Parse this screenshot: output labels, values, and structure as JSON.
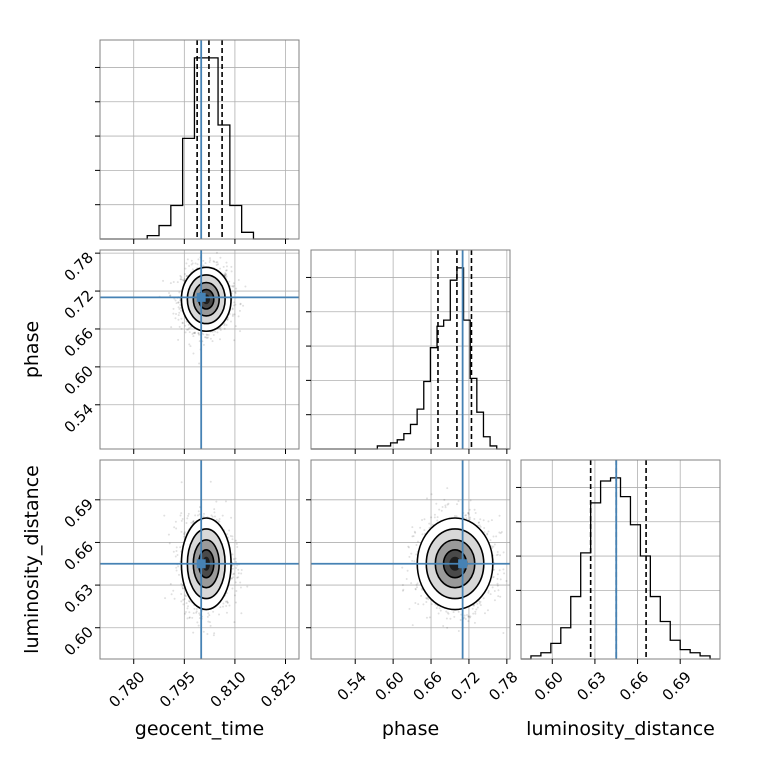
{
  "colors": {
    "truth": "#4682b4",
    "hist": "#000000",
    "grid": "#b0b0b0",
    "scatter": "#000000"
  },
  "chart_data": {
    "type": "corner",
    "parameters": [
      "geocent_time",
      "phase",
      "luminosity_distance"
    ],
    "axes_labels": {
      "x": [
        "geocent_time",
        "phase",
        "luminosity_distance"
      ],
      "y": [
        "phase",
        "luminosity_distance"
      ]
    },
    "truths": {
      "geocent_time": 0.8,
      "phase": 0.71,
      "luminosity_distance": 0.645
    },
    "ranges": {
      "geocent_time": [
        0.77,
        0.829
      ],
      "phase": [
        0.47,
        0.785
      ],
      "luminosity_distance": [
        0.578,
        0.718
      ]
    },
    "ticks": {
      "geocent_time": {
        "values": [
          0.78,
          0.795,
          0.81,
          0.825
        ],
        "labels": [
          "0.780",
          "0.795",
          "0.810",
          "0.825"
        ]
      },
      "phase": {
        "values": [
          0.54,
          0.6,
          0.66,
          0.72,
          0.78
        ],
        "labels": [
          "0.54",
          "0.60",
          "0.66",
          "0.72",
          "0.78"
        ]
      },
      "luminosity_distance": {
        "values": [
          0.6,
          0.63,
          0.66,
          0.69
        ],
        "labels": [
          "0.60",
          "0.63",
          "0.66",
          "0.69"
        ]
      }
    },
    "quantiles": {
      "geocent_time": [
        0.7988,
        0.8023,
        0.8062
      ],
      "phase": [
        0.671,
        0.701,
        0.724
      ],
      "luminosity_distance": [
        0.627,
        0.645,
        0.666
      ]
    },
    "histograms": {
      "geocent_time": {
        "edges": [
          0.77,
          0.7735,
          0.777,
          0.7805,
          0.784,
          0.7875,
          0.791,
          0.7945,
          0.798,
          0.8015,
          0.805,
          0.8085,
          0.812,
          0.8155,
          0.819,
          0.8225,
          0.826
        ],
        "counts": [
          0,
          0,
          0,
          0,
          1,
          4,
          10,
          30,
          54,
          54,
          34,
          10,
          2,
          0,
          0,
          0
        ]
      },
      "phase": {
        "edges": [
          0.47,
          0.4805,
          0.491,
          0.5015,
          0.512,
          0.5225,
          0.533,
          0.5435,
          0.554,
          0.5645,
          0.575,
          0.5855,
          0.596,
          0.6065,
          0.617,
          0.6275,
          0.638,
          0.6485,
          0.659,
          0.6695,
          0.68,
          0.6905,
          0.701,
          0.7115,
          0.722,
          0.7325,
          0.743,
          0.7535,
          0.764,
          0.7745,
          0.785
        ],
        "counts": [
          0,
          0,
          0,
          0,
          0,
          0,
          0,
          0,
          0,
          0,
          1,
          1,
          2,
          3,
          5,
          8,
          13,
          22,
          33,
          40,
          42,
          55,
          59,
          42,
          23,
          12,
          4,
          1,
          0,
          0
        ]
      },
      "luminosity_distance": {
        "edges": [
          0.578,
          0.585,
          0.592,
          0.599,
          0.606,
          0.613,
          0.62,
          0.627,
          0.634,
          0.641,
          0.648,
          0.655,
          0.662,
          0.669,
          0.676,
          0.683,
          0.69,
          0.697,
          0.704,
          0.711,
          0.718
        ],
        "counts": [
          0,
          1,
          2,
          5,
          10,
          20,
          34,
          50,
          57,
          58,
          52,
          43,
          33,
          20,
          12,
          6,
          3,
          2,
          1,
          0
        ]
      }
    },
    "joint": [
      {
        "x": "geocent_time",
        "y": "phase",
        "center": [
          0.8015,
          0.707
        ],
        "sigma": [
          0.0032,
          0.022
        ]
      },
      {
        "x": "geocent_time",
        "y": "luminosity_distance",
        "center": [
          0.8015,
          0.645
        ],
        "sigma": [
          0.0032,
          0.014
        ]
      },
      {
        "x": "phase",
        "y": "luminosity_distance",
        "center": [
          0.698,
          0.645
        ],
        "sigma": [
          0.026,
          0.014
        ]
      }
    ],
    "grid": true
  }
}
